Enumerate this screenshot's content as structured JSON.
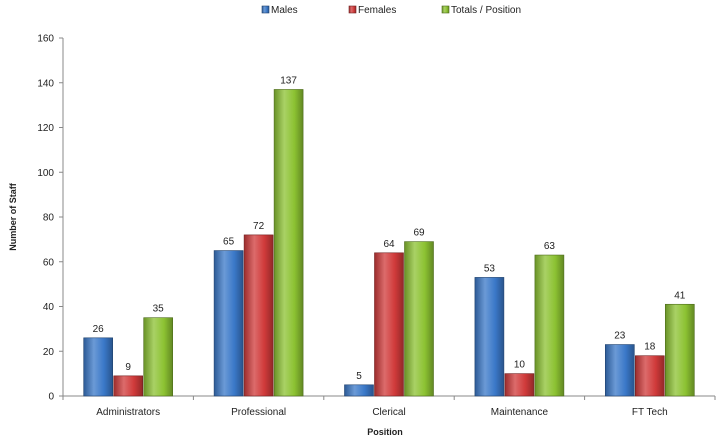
{
  "chart_data": {
    "type": "bar",
    "categories": [
      "Administrators",
      "Professional",
      "Clerical",
      "Maintenance",
      "FT Tech"
    ],
    "series": [
      {
        "name": "Males",
        "values": [
          26,
          65,
          5,
          53,
          23
        ],
        "color": "#3a78c8"
      },
      {
        "name": "Females",
        "values": [
          9,
          72,
          64,
          10,
          18
        ],
        "color": "#d03a3a"
      },
      {
        "name": "Totals / Position",
        "values": [
          35,
          137,
          69,
          63,
          41
        ],
        "color": "#8cc232"
      }
    ],
    "xlabel": "Position",
    "ylabel": "Number of Staff",
    "ylim": [
      0,
      160
    ],
    "yticks": [
      0,
      20,
      40,
      60,
      80,
      100,
      120,
      140,
      160
    ],
    "grid": false,
    "legend_position": "top-center",
    "data_labels": true
  }
}
